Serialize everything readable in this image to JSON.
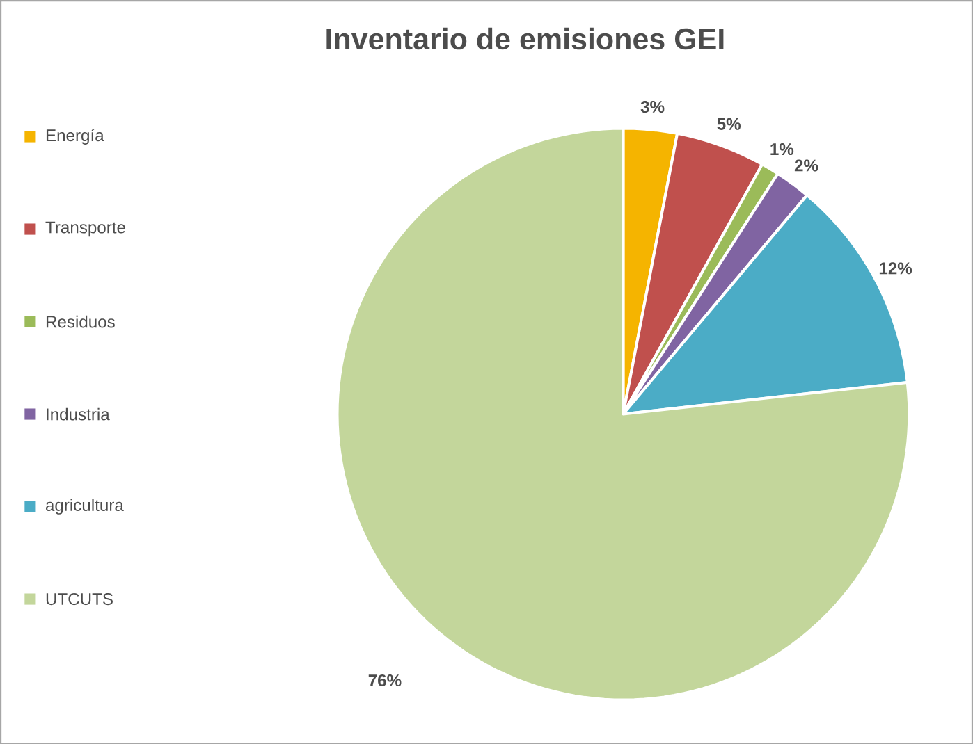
{
  "chart_data": {
    "type": "pie",
    "title": "Inventario de emisiones GEI",
    "categories": [
      "Energía",
      "Transporte",
      "Residuos",
      "Industria",
      "agricultura",
      "UTCUTS"
    ],
    "values": [
      3,
      5,
      1,
      2,
      12,
      76
    ],
    "colors": [
      "#f5b400",
      "#c0504d",
      "#9bbb59",
      "#8064a2",
      "#4bacc6",
      "#c3d69b"
    ],
    "data_labels": true,
    "value_labels": [
      "3%",
      "5%",
      "1%",
      "2%",
      "12%",
      "76%"
    ],
    "legend": "left"
  }
}
